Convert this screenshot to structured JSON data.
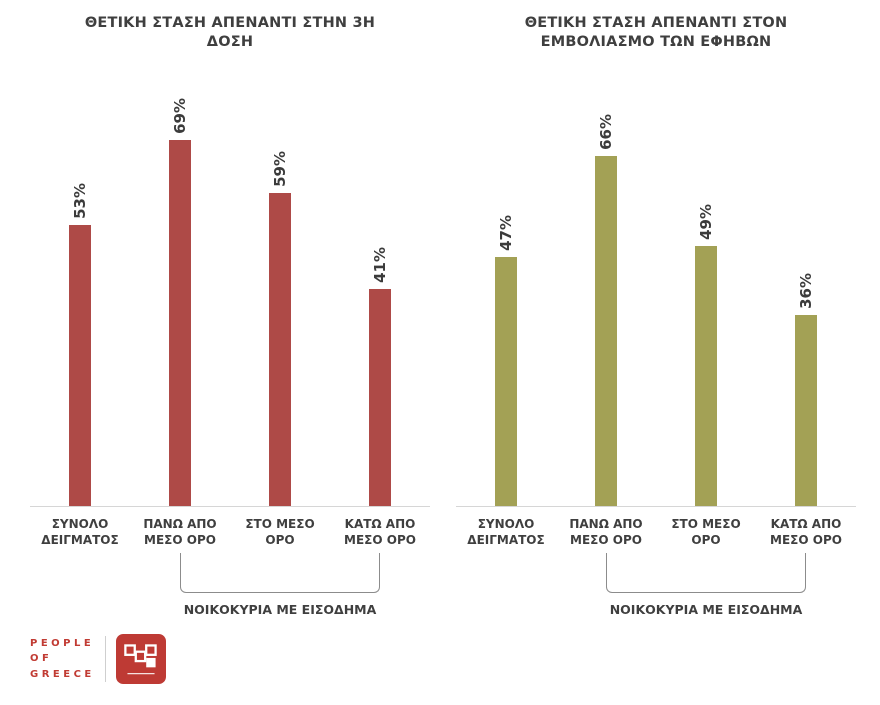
{
  "page": {
    "background_color": "#FFFFFF"
  },
  "chart_data": [
    {
      "type": "bar",
      "title": "ΘΕΤΙΚΗ ΣΤΑΣΗ ΑΠΕΝΑΝΤΙ ΣΤΗΝ 3Η ΔΟΣΗ",
      "categories": [
        "ΣΥΝΟΛΟ ΔΕΙΓΜΑΤΟΣ",
        "ΠΑΝΩ ΑΠΟ ΜΕΣΟ ΟΡΟ",
        "ΣΤΟ ΜΕΣΟ ΟΡΟ",
        "ΚΑΤΩ ΑΠΟ ΜΕΣΟ ΟΡΟ"
      ],
      "values": [
        53,
        69,
        59,
        41
      ],
      "unit": "%",
      "bar_color": "#AE4A47",
      "ylim": [
        0,
        100
      ],
      "grid": false,
      "legend": false,
      "value_label_rotation": 90,
      "group_bracket": {
        "label": "ΝΟΙΚΟΚΥΡΙΑ ΜΕ ΕΙΣΟΔΗΜΑ",
        "from_category_index": 1,
        "to_category_index": 3
      }
    },
    {
      "type": "bar",
      "title": "ΘΕΤΙΚΗ ΣΤΑΣΗ ΑΠΕΝΑΝΤΙ ΣΤΟΝ ΕΜΒΟΛΙΑΣΜΟ ΤΩΝ ΕΦΗΒΩΝ",
      "categories": [
        "ΣΥΝΟΛΟ ΔΕΙΓΜΑΤΟΣ",
        "ΠΑΝΩ ΑΠΟ ΜΕΣΟ ΟΡΟ",
        "ΣΤΟ ΜΕΣΟ ΟΡΟ",
        "ΚΑΤΩ ΑΠΟ ΜΕΣΟ ΟΡΟ"
      ],
      "values": [
        47,
        66,
        49,
        36
      ],
      "unit": "%",
      "bar_color": "#A3A155",
      "ylim": [
        0,
        100
      ],
      "grid": false,
      "legend": false,
      "value_label_rotation": 90,
      "group_bracket": {
        "label": "ΝΟΙΚΟΚΥΡΙΑ ΜΕ ΕΙΣΟΔΗΜΑ",
        "from_category_index": 1,
        "to_category_index": 3
      }
    }
  ],
  "logo": {
    "line1": "PEOPLE",
    "line2": "OF",
    "line3": "GREECE",
    "accent_color": "#C13B33"
  }
}
